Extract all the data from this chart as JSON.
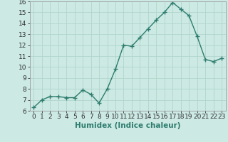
{
  "x": [
    0,
    1,
    2,
    3,
    4,
    5,
    6,
    7,
    8,
    9,
    10,
    11,
    12,
    13,
    14,
    15,
    16,
    17,
    18,
    19,
    20,
    21,
    22,
    23
  ],
  "y": [
    6.3,
    7.0,
    7.3,
    7.3,
    7.2,
    7.2,
    7.9,
    7.5,
    6.7,
    8.0,
    9.8,
    12.0,
    11.9,
    12.7,
    13.5,
    14.3,
    15.0,
    15.9,
    15.3,
    14.7,
    12.8,
    10.7,
    10.5,
    10.8
  ],
  "line_color": "#2e7d6e",
  "marker": "+",
  "marker_size": 4,
  "bg_color": "#cce9e4",
  "grid_color": "#b0d5cc",
  "xlabel": "Humidex (Indice chaleur)",
  "xlim": [
    -0.5,
    23.5
  ],
  "ylim": [
    6,
    16
  ],
  "yticks": [
    6,
    7,
    8,
    9,
    10,
    11,
    12,
    13,
    14,
    15,
    16
  ],
  "xticks": [
    0,
    1,
    2,
    3,
    4,
    5,
    6,
    7,
    8,
    9,
    10,
    11,
    12,
    13,
    14,
    15,
    16,
    17,
    18,
    19,
    20,
    21,
    22,
    23
  ],
  "tick_fontsize": 6.5,
  "label_fontsize": 7.5
}
